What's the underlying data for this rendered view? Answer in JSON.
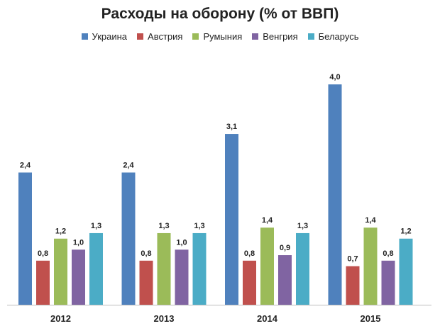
{
  "chart_data": {
    "type": "bar",
    "title": "Расходы на оборону (% от ВВП)",
    "xlabel": "",
    "ylabel": "",
    "ylim": [
      0,
      4.4
    ],
    "grid": false,
    "legend_position": "top",
    "categories": [
      "2012",
      "2013",
      "2014",
      "2015"
    ],
    "series": [
      {
        "name": "Украина",
        "color": "#4f81bd",
        "values": [
          2.4,
          2.4,
          3.1,
          4.0
        ],
        "labels": [
          "2,4",
          "2,4",
          "3,1",
          "4,0"
        ]
      },
      {
        "name": "Австрия",
        "color": "#c0504d",
        "values": [
          0.8,
          0.8,
          0.8,
          0.7
        ],
        "labels": [
          "0,8",
          "0,8",
          "0,8",
          "0,7"
        ]
      },
      {
        "name": "Румыния",
        "color": "#9bbb59",
        "values": [
          1.2,
          1.3,
          1.4,
          1.4
        ],
        "labels": [
          "1,2",
          "1,3",
          "1,4",
          "1,4"
        ]
      },
      {
        "name": "Венгрия",
        "color": "#8064a2",
        "values": [
          1.0,
          1.0,
          0.9,
          0.8
        ],
        "labels": [
          "1,0",
          "1,0",
          "0,9",
          "0,8"
        ]
      },
      {
        "name": "Беларусь",
        "color": "#4bacc6",
        "values": [
          1.3,
          1.3,
          1.3,
          1.2
        ],
        "labels": [
          "1,3",
          "1,3",
          "1,3",
          "1,2"
        ]
      }
    ]
  }
}
